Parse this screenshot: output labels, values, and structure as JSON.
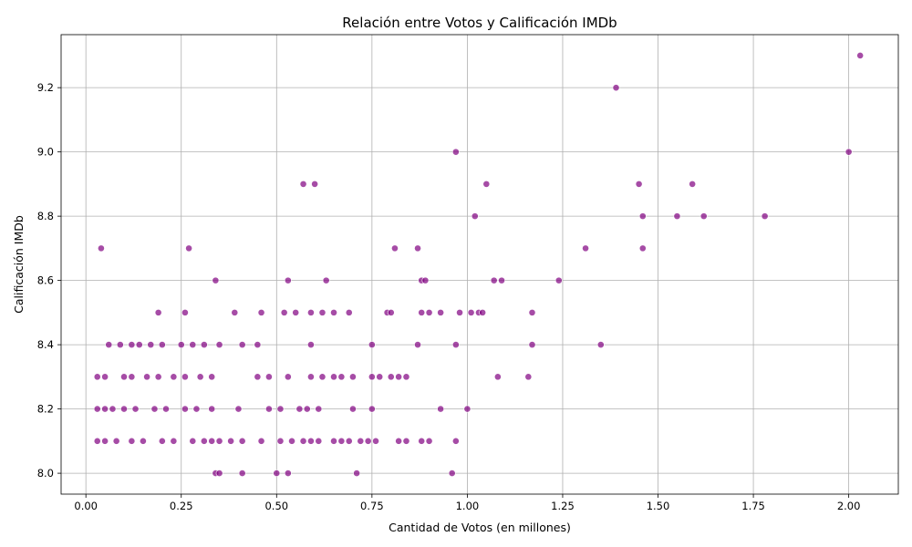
{
  "chart_data": {
    "type": "scatter",
    "title": "Relación entre Votos y Calificación IMDb",
    "xlabel": "Cantidad de Votos (en millones)",
    "ylabel": "Calificación IMDb",
    "xlim": [
      -0.065,
      2.13
    ],
    "ylim": [
      7.935,
      9.365
    ],
    "xticks": [
      0.0,
      0.25,
      0.5,
      0.75,
      1.0,
      1.25,
      1.5,
      1.75,
      2.0
    ],
    "xtick_labels": [
      "0.00",
      "0.25",
      "0.50",
      "0.75",
      "1.00",
      "1.25",
      "1.50",
      "1.75",
      "2.00"
    ],
    "yticks": [
      8.0,
      8.2,
      8.4,
      8.6,
      8.8,
      9.0,
      9.2
    ],
    "ytick_labels": [
      "8.0",
      "8.2",
      "8.4",
      "8.6",
      "8.8",
      "9.0",
      "9.2"
    ],
    "grid": true,
    "point_color": "#800080",
    "x": [
      2.03,
      1.39,
      2.0,
      0.97,
      1.05,
      0.57,
      0.6,
      1.45,
      1.59,
      1.02,
      1.46,
      1.55,
      1.62,
      1.78,
      0.04,
      0.27,
      0.81,
      0.87,
      1.31,
      1.46,
      0.34,
      0.53,
      0.63,
      0.88,
      0.89,
      1.07,
      1.09,
      1.24,
      0.19,
      0.26,
      0.39,
      0.46,
      0.52,
      0.55,
      0.59,
      0.62,
      0.65,
      0.69,
      0.79,
      0.8,
      0.88,
      0.9,
      0.93,
      0.98,
      1.01,
      1.03,
      1.04,
      1.17,
      0.06,
      0.09,
      0.12,
      0.14,
      0.17,
      0.2,
      0.25,
      0.28,
      0.31,
      0.35,
      0.41,
      0.45,
      0.59,
      0.75,
      0.87,
      0.97,
      1.17,
      1.35,
      0.03,
      0.05,
      0.1,
      0.12,
      0.16,
      0.19,
      0.23,
      0.26,
      0.3,
      0.33,
      0.45,
      0.48,
      0.53,
      0.59,
      0.62,
      0.65,
      0.67,
      0.7,
      0.75,
      0.77,
      0.8,
      0.82,
      0.84,
      1.08,
      1.16,
      0.03,
      0.05,
      0.07,
      0.1,
      0.13,
      0.18,
      0.21,
      0.26,
      0.29,
      0.33,
      0.4,
      0.48,
      0.51,
      0.56,
      0.58,
      0.61,
      0.7,
      0.75,
      0.93,
      1.0,
      0.03,
      0.05,
      0.08,
      0.12,
      0.15,
      0.2,
      0.23,
      0.28,
      0.31,
      0.33,
      0.35,
      0.38,
      0.41,
      0.46,
      0.51,
      0.54,
      0.57,
      0.59,
      0.61,
      0.65,
      0.67,
      0.69,
      0.72,
      0.74,
      0.76,
      0.82,
      0.84,
      0.88,
      0.9,
      0.97,
      0.34,
      0.35,
      0.41,
      0.5,
      0.53,
      0.71,
      0.96
    ],
    "y": [
      9.3,
      9.2,
      9.0,
      9.0,
      8.9,
      8.9,
      8.9,
      8.9,
      8.9,
      8.8,
      8.8,
      8.8,
      8.8,
      8.8,
      8.7,
      8.7,
      8.7,
      8.7,
      8.7,
      8.7,
      8.6,
      8.6,
      8.6,
      8.6,
      8.6,
      8.6,
      8.6,
      8.6,
      8.5,
      8.5,
      8.5,
      8.5,
      8.5,
      8.5,
      8.5,
      8.5,
      8.5,
      8.5,
      8.5,
      8.5,
      8.5,
      8.5,
      8.5,
      8.5,
      8.5,
      8.5,
      8.5,
      8.5,
      8.4,
      8.4,
      8.4,
      8.4,
      8.4,
      8.4,
      8.4,
      8.4,
      8.4,
      8.4,
      8.4,
      8.4,
      8.4,
      8.4,
      8.4,
      8.4,
      8.4,
      8.4,
      8.3,
      8.3,
      8.3,
      8.3,
      8.3,
      8.3,
      8.3,
      8.3,
      8.3,
      8.3,
      8.3,
      8.3,
      8.3,
      8.3,
      8.3,
      8.3,
      8.3,
      8.3,
      8.3,
      8.3,
      8.3,
      8.3,
      8.3,
      8.3,
      8.3,
      8.2,
      8.2,
      8.2,
      8.2,
      8.2,
      8.2,
      8.2,
      8.2,
      8.2,
      8.2,
      8.2,
      8.2,
      8.2,
      8.2,
      8.2,
      8.2,
      8.2,
      8.2,
      8.2,
      8.2,
      8.1,
      8.1,
      8.1,
      8.1,
      8.1,
      8.1,
      8.1,
      8.1,
      8.1,
      8.1,
      8.1,
      8.1,
      8.1,
      8.1,
      8.1,
      8.1,
      8.1,
      8.1,
      8.1,
      8.1,
      8.1,
      8.1,
      8.1,
      8.1,
      8.1,
      8.1,
      8.1,
      8.1,
      8.1,
      8.1,
      8.0,
      8.0,
      8.0,
      8.0,
      8.0,
      8.0,
      8.0
    ]
  }
}
